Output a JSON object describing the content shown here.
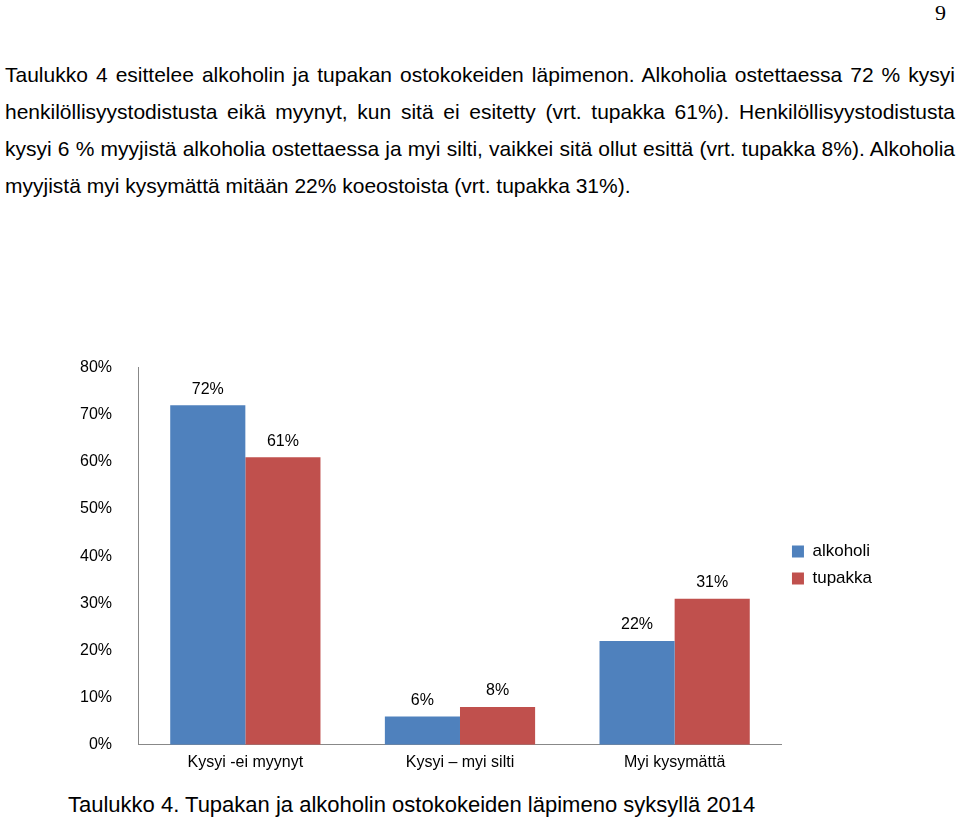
{
  "page_number": "9",
  "paragraph": "Taulukko 4 esittelee alkoholin ja tupakan ostokokeiden läpimenon. Alkoholia ostettaessa 72 % kysyi henkilöllisyystodistusta eikä myynyt, kun sitä ei esitetty (vrt. tupakka 61%). Henkilöllisyystodistusta kysyi 6 % myyjistä alkoholia ostettaessa ja myi silti, vaikkei sitä ollut esittä (vrt. tupakka 8%). Alkoholia myyjistä myi kysymättä mitään 22% koeostoista (vrt. tupakka 31%).",
  "caption": "Taulukko 4. Tupakan ja alkoholin ostokokeiden läpimeno syksyllä 2014",
  "chart_data": {
    "type": "bar",
    "categories": [
      "Kysyi -ei myynyt",
      "Kysyi – myi silti",
      "Myi kysymättä"
    ],
    "series": [
      {
        "name": "alkoholi",
        "color": "#4f81bd",
        "values": [
          72,
          6,
          22
        ],
        "value_labels": [
          "72%",
          "6%",
          "22%"
        ]
      },
      {
        "name": "tupakka",
        "color": "#c0504d",
        "values": [
          61,
          8,
          31
        ],
        "value_labels": [
          "61%",
          "8%",
          "31%"
        ]
      }
    ],
    "ylim": [
      0,
      80
    ],
    "yticks": [
      {
        "value": 0,
        "label": "0%"
      },
      {
        "value": 10,
        "label": "10%"
      },
      {
        "value": 20,
        "label": "20%"
      },
      {
        "value": 30,
        "label": "30%"
      },
      {
        "value": 40,
        "label": "40%"
      },
      {
        "value": 50,
        "label": "50%"
      },
      {
        "value": 60,
        "label": "60%"
      },
      {
        "value": 70,
        "label": "70%"
      },
      {
        "value": 80,
        "label": "80%"
      }
    ],
    "grid": false,
    "legend": "right",
    "data_labels": true
  }
}
